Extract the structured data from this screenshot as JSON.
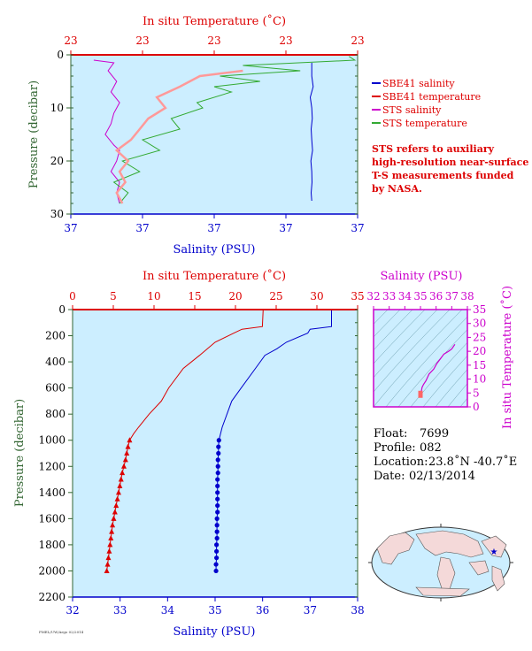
{
  "colors": {
    "salinity": "#0000cc",
    "temperature": "#dd0000",
    "sts_salinity": "#cc00cc",
    "sts_temperature": "#33aa33",
    "plot_bg": "#cceeff",
    "pressure_axis": "#336633",
    "ts_axis": "#cc00cc"
  },
  "chart_data": [
    {
      "type": "line",
      "id": "near-surface",
      "top_axis_label": "In situ Temperature (˚C)",
      "top_ticks": [
        "23",
        "23",
        "23",
        "23",
        "23"
      ],
      "bottom_axis_label": "Salinity (PSU)",
      "bottom_ticks": [
        "37",
        "37",
        "37",
        "37",
        "37"
      ],
      "ylabel": "Pressure (decibar)",
      "ylim": [
        30,
        0
      ],
      "yticks": [
        "0",
        "10",
        "20",
        "30"
      ],
      "legend": [
        {
          "name": "SBE41 salinity",
          "color": "#0000cc"
        },
        {
          "name": "SBE41 temperature",
          "color": "#dd0000"
        },
        {
          "name": "STS salinity",
          "color": "#cc00cc"
        },
        {
          "name": "STS temperature",
          "color": "#33aa33"
        }
      ],
      "note": [
        "STS refers to auxiliary",
        "high-resolution near-surface",
        "T-S measurements funded",
        "by NASA."
      ],
      "series": [
        {
          "name": "SBE41 salinity",
          "x_frac": [
            0.84,
            0.84,
            0.845,
            0.835,
            0.84,
            0.842,
            0.838,
            0.84,
            0.843,
            0.837,
            0.84,
            0.841,
            0.838,
            0.84
          ],
          "p": [
            1.5,
            4,
            6,
            8,
            10,
            12,
            14,
            16,
            18,
            20,
            22,
            24,
            26,
            27.5
          ]
        },
        {
          "name": "STS salinity",
          "x_frac": [
            0.08,
            0.15,
            0.13,
            0.16,
            0.14,
            0.17,
            0.15,
            0.14,
            0.12,
            0.15,
            0.17,
            0.16,
            0.14,
            0.17,
            0.16,
            0.17
          ],
          "p": [
            1,
            1.5,
            3,
            5,
            7,
            9,
            11,
            13,
            15,
            17,
            18,
            20,
            22,
            24,
            26,
            28
          ]
        },
        {
          "name": "STS temperature",
          "x_frac": [
            0.97,
            0.99,
            0.6,
            0.8,
            0.52,
            0.66,
            0.5,
            0.56,
            0.44,
            0.46,
            0.35,
            0.38,
            0.25,
            0.31,
            0.18,
            0.24,
            0.15,
            0.2,
            0.17
          ],
          "p": [
            0.3,
            1,
            2,
            3,
            4,
            5,
            6,
            7,
            9,
            10,
            12,
            14,
            16,
            18,
            20,
            22,
            24,
            26,
            28
          ]
        },
        {
          "name": "SBE41 temperature",
          "x_frac": [
            0.6,
            0.45,
            0.38,
            0.3,
            0.33,
            0.3,
            0.27,
            0.24,
            0.21,
            0.16,
            0.2,
            0.17,
            0.19,
            0.16,
            0.18
          ],
          "p": [
            3,
            4,
            6,
            8,
            10,
            11,
            12,
            14,
            16,
            18,
            20,
            22,
            24,
            26,
            28
          ]
        }
      ]
    },
    {
      "type": "line",
      "id": "full-profile",
      "top_axis_label": "In situ Temperature (˚C)",
      "top_ticks": [
        "0",
        "5",
        "10",
        "15",
        "20",
        "25",
        "30",
        "35"
      ],
      "xlim_top": [
        0,
        35
      ],
      "bottom_axis_label": "Salinity (PSU)",
      "bottom_ticks": [
        "32",
        "33",
        "34",
        "35",
        "36",
        "37",
        "38"
      ],
      "xlim_bottom": [
        32,
        38
      ],
      "ylabel": "Pressure (decibar)",
      "ylim": [
        2200,
        0
      ],
      "yticks": [
        "0",
        "200",
        "400",
        "600",
        "800",
        "1000",
        "1200",
        "1400",
        "1600",
        "1800",
        "2000",
        "2200"
      ],
      "series": [
        {
          "name": "Temperature",
          "p": [
            0,
            130,
            150,
            180,
            250,
            350,
            450,
            600,
            700,
            800,
            900,
            950,
            1000,
            1050,
            1100,
            1150,
            1200,
            1250,
            1300,
            1350,
            1400,
            1450,
            1500,
            1550,
            1600,
            1650,
            1700,
            1750,
            1800,
            1850,
            1900,
            1950,
            2000
          ],
          "t": [
            23.4,
            23.3,
            20.8,
            19.8,
            17.5,
            15.6,
            13.6,
            11.8,
            10.9,
            9.4,
            8.1,
            7.5,
            7.0,
            6.8,
            6.65,
            6.5,
            6.3,
            6.1,
            5.95,
            5.8,
            5.65,
            5.5,
            5.35,
            5.2,
            5.05,
            4.9,
            4.8,
            4.7,
            4.6,
            4.5,
            4.4,
            4.3,
            4.2
          ]
        },
        {
          "name": "Salinity",
          "p": [
            0,
            130,
            150,
            180,
            250,
            300,
            350,
            450,
            600,
            700,
            800,
            900,
            1000,
            1050,
            1100,
            1150,
            1200,
            1250,
            1300,
            1350,
            1400,
            1450,
            1500,
            1550,
            1600,
            1650,
            1700,
            1750,
            1800,
            1850,
            1900,
            1950,
            2000
          ],
          "s": [
            37.45,
            37.45,
            37.0,
            36.95,
            36.5,
            36.3,
            36.05,
            35.85,
            35.55,
            35.35,
            35.25,
            35.15,
            35.08,
            35.07,
            35.07,
            35.06,
            35.06,
            35.06,
            35.05,
            35.05,
            35.05,
            35.05,
            35.05,
            35.05,
            35.04,
            35.04,
            35.04,
            35.04,
            35.03,
            35.03,
            35.03,
            35.02,
            35.02
          ]
        }
      ]
    },
    {
      "type": "line",
      "id": "ts-diagram",
      "top_axis_label": "Salinity (PSU)",
      "top_ticks": [
        "32",
        "33",
        "34",
        "35",
        "36",
        "37",
        "38"
      ],
      "xlim": [
        32,
        38
      ],
      "right_axis_label": "In situ Temperature (˚C)",
      "right_ticks": [
        "0",
        "5",
        "10",
        "15",
        "20",
        "25",
        "30",
        "35"
      ],
      "ylim": [
        0,
        35
      ],
      "series": [
        {
          "name": "T-S",
          "s": [
            35.02,
            35.04,
            35.06,
            35.1,
            35.2,
            35.35,
            35.55,
            35.85,
            36.05,
            36.3,
            36.5,
            36.8,
            37.0,
            37.2
          ],
          "t": [
            4.2,
            4.8,
            5.8,
            7.0,
            8.1,
            9.4,
            11.8,
            13.6,
            15.6,
            17.5,
            19.0,
            20.0,
            20.8,
            22.5
          ]
        }
      ]
    }
  ],
  "float_info": {
    "float_label": "Float:",
    "float_value": "7699",
    "profile_label": "Profile:",
    "profile_value": "082",
    "location_label": "Location:",
    "location_value": "23.8˚N  -40.7˚E",
    "date_label": "Date:",
    "date_value": "02/13/2014"
  },
  "footer_text": "PMEL/UW/Argo 02/2014"
}
